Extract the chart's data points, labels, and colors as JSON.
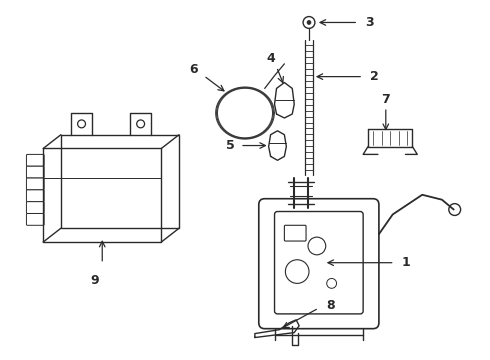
{
  "background_color": "#ffffff",
  "line_color": "#2a2a2a",
  "label_color": "#000000",
  "figsize": [
    4.9,
    3.6
  ],
  "dpi": 100
}
